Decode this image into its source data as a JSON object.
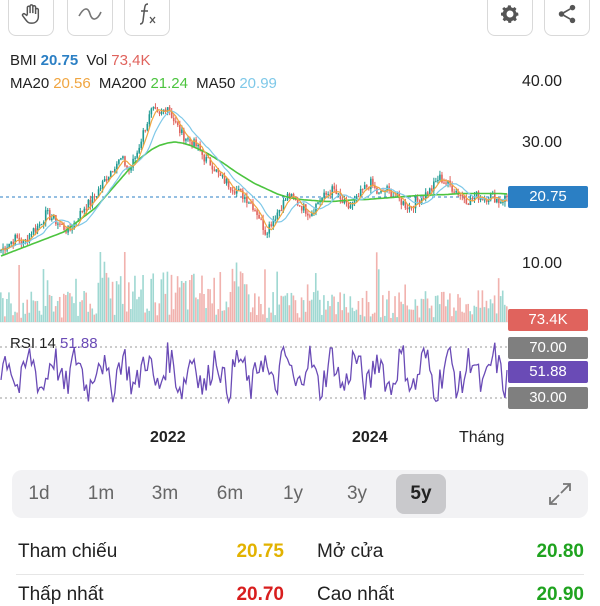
{
  "toolbar": {
    "left_icons": [
      "hand-icon",
      "wave-icon",
      "function-icon"
    ],
    "right_icons": [
      "gear-icon",
      "share-icon"
    ]
  },
  "legend": {
    "symbol": "BMI",
    "price": "20.75",
    "vol_label": "Vol",
    "vol_value": "73,4K",
    "ma20_label": "MA20",
    "ma20_value": "20.56",
    "ma200_label": "MA200",
    "ma200_value": "21.24",
    "ma50_label": "MA50",
    "ma50_value": "20.99"
  },
  "price_axis": {
    "ticks": [
      "40.00",
      "30.00",
      "10.00"
    ]
  },
  "tags": {
    "price": "20.75",
    "volume": "73.4K",
    "rsi_high": "70.00",
    "rsi_value": "51.88",
    "rsi_low": "30.00"
  },
  "rsi": {
    "label": "RSI 14",
    "value": "51.88"
  },
  "x_labels": [
    "2022",
    "2024",
    "Tháng"
  ],
  "ranges": [
    "1d",
    "1m",
    "3m",
    "6m",
    "1y",
    "3y",
    "5y"
  ],
  "active_range": "5y",
  "info": {
    "reference_label": "Tham chiếu",
    "reference_value": "20.75",
    "open_label": "Mở cửa",
    "open_value": "20.80",
    "low_label": "Thấp nhất",
    "low_value": "20.70",
    "high_label": "Cao nhất",
    "high_value": "20.90"
  },
  "colors": {
    "up": "#1f9a92",
    "down": "#e0635d",
    "ma20": "#f0a540",
    "ma200": "#4cc43f",
    "ma50": "#7ec8e8",
    "rsi": "#6a4bb6",
    "price_tag": "#2b7fc4",
    "volume_tag": "#e0635d",
    "rsi_tag": "#7f7f7f",
    "rsi_value_tag": "#6a4bb6",
    "reference_value": "#e2b200",
    "green_value": "#1fa31f",
    "red_value": "#d81e1e"
  },
  "chart_data": {
    "type": "line",
    "price_close_samples": [
      12,
      13,
      14,
      13,
      15,
      16,
      18,
      17,
      16,
      15,
      17,
      19,
      20,
      22,
      24,
      26,
      27,
      25,
      28,
      32,
      35,
      34,
      36,
      33,
      31,
      30,
      29,
      27,
      26,
      24,
      23,
      22,
      21,
      20,
      18,
      15,
      17,
      19,
      21,
      20,
      19,
      18,
      20,
      21,
      22,
      20,
      19,
      20,
      22,
      23,
      21,
      22,
      21,
      20,
      19,
      20,
      21,
      22,
      24,
      23,
      22,
      21,
      20,
      21,
      20.5,
      21,
      20,
      20.75
    ],
    "ma200_samples": [
      11,
      11.5,
      12,
      12.5,
      13,
      13.5,
      14,
      14.5,
      15,
      16,
      17,
      18,
      19,
      20.5,
      22,
      23.5,
      25,
      26.5,
      27.5,
      28.5,
      29.2,
      29.6,
      29.8,
      29.6,
      29.2,
      28.6,
      28,
      27.2,
      26.4,
      25.5,
      24.6,
      23.8,
      23,
      22.4,
      21.8,
      21.2,
      20.8,
      20.5,
      20.3,
      20.2,
      20.1,
      20.0,
      20.0,
      20.1,
      20.2,
      20.3,
      20.3,
      20.4,
      20.5,
      20.6,
      20.7,
      20.8,
      20.9,
      21.0,
      21.0,
      21.1,
      21.1,
      21.2,
      21.3,
      21.3,
      21.3,
      21.3,
      21.3,
      21.3,
      21.24
    ],
    "y_ticks": [
      40,
      30,
      10
    ],
    "rsi_levels": [
      70,
      30
    ],
    "rsi_last": 51.88,
    "volume_last": "73.4K"
  }
}
